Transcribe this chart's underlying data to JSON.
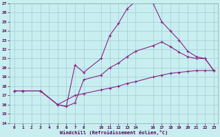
{
  "xlabel": "Windchill (Refroidissement éolien,°C)",
  "bg_color": "#c8eef0",
  "grid_color": "#a0ccd4",
  "line_color": "#882288",
  "xlim": [
    -0.5,
    23.5
  ],
  "ylim": [
    14,
    27
  ],
  "xticks": [
    0,
    1,
    2,
    3,
    4,
    5,
    6,
    7,
    8,
    10,
    11,
    12,
    13,
    14,
    16,
    17,
    18,
    19,
    20,
    21,
    22,
    23
  ],
  "yticks": [
    14,
    15,
    16,
    17,
    18,
    19,
    20,
    21,
    22,
    23,
    24,
    25,
    26,
    27
  ],
  "line1_x": [
    0,
    1,
    3,
    5,
    6,
    7,
    8,
    10,
    11,
    12,
    13,
    14,
    15,
    16,
    17,
    18,
    19,
    20,
    21,
    22,
    23
  ],
  "line1_y": [
    17.5,
    17.5,
    17.5,
    16.0,
    15.8,
    20.3,
    19.5,
    21.0,
    23.5,
    24.8,
    26.4,
    27.2,
    27.2,
    27.0,
    25.0,
    24.0,
    23.0,
    21.8,
    21.2,
    21.0,
    19.7
  ],
  "line2_x": [
    0,
    1,
    3,
    5,
    6,
    7,
    8,
    10,
    11,
    12,
    13,
    14,
    16,
    17,
    18,
    19,
    20,
    21,
    22,
    23
  ],
  "line2_y": [
    17.5,
    17.5,
    17.5,
    16.0,
    15.8,
    16.2,
    18.7,
    19.2,
    20.0,
    20.5,
    21.2,
    21.8,
    22.4,
    22.8,
    22.3,
    21.7,
    21.2,
    21.0,
    21.0,
    19.7
  ],
  "line3_x": [
    0,
    1,
    3,
    5,
    7,
    8,
    10,
    11,
    12,
    13,
    14,
    16,
    17,
    18,
    19,
    20,
    21,
    22,
    23
  ],
  "line3_y": [
    17.5,
    17.5,
    17.5,
    16.0,
    17.0,
    17.2,
    17.6,
    17.8,
    18.0,
    18.3,
    18.5,
    19.0,
    19.2,
    19.4,
    19.5,
    19.6,
    19.7,
    19.7,
    19.7
  ]
}
